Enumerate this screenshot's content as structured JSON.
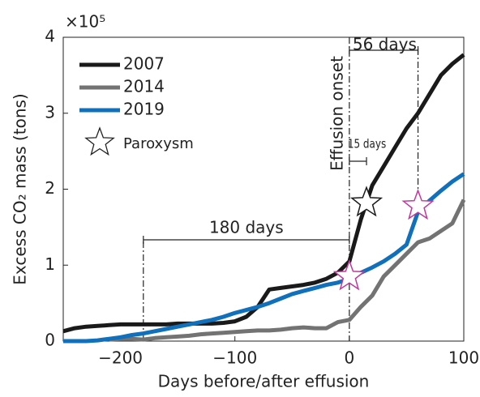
{
  "chart_data": {
    "type": "line",
    "xlabel": "Days before/after effusion",
    "ylabel": "Excess CO₂ mass (tons)",
    "y_multiplier": "×10⁵",
    "xlim": [
      -250,
      100
    ],
    "ylim": [
      0,
      4
    ],
    "xticks": [
      {
        "value": -200,
        "label": "−200"
      },
      {
        "value": -100,
        "label": "−100"
      },
      0,
      100
    ],
    "yticks": [
      0,
      1,
      2,
      3,
      4
    ],
    "legend": "upper left",
    "x": [
      -250,
      -240,
      -230,
      -220,
      -210,
      -200,
      -190,
      -180,
      -170,
      -160,
      -150,
      -140,
      -130,
      -120,
      -110,
      -100,
      -90,
      -80,
      -70,
      -60,
      -50,
      -40,
      -30,
      -20,
      -10,
      0,
      10,
      20,
      30,
      40,
      50,
      60,
      70,
      80,
      90,
      100
    ],
    "series": [
      {
        "name": "2007",
        "color": "#1a1a1a",
        "values": [
          0.13,
          0.17,
          0.19,
          0.2,
          0.21,
          0.22,
          0.22,
          0.22,
          0.22,
          0.22,
          0.23,
          0.23,
          0.23,
          0.23,
          0.24,
          0.26,
          0.32,
          0.45,
          0.68,
          0.7,
          0.72,
          0.74,
          0.77,
          0.82,
          0.9,
          1.05,
          1.6,
          2.05,
          2.3,
          2.55,
          2.8,
          3.0,
          3.25,
          3.5,
          3.65,
          3.77
        ]
      },
      {
        "name": "2014",
        "color": "#737373",
        "values": [
          null,
          null,
          null,
          null,
          0.02,
          0.03,
          0.03,
          0.02,
          0.04,
          0.05,
          0.06,
          0.07,
          0.09,
          0.1,
          0.11,
          0.12,
          0.13,
          0.14,
          0.14,
          0.15,
          0.17,
          0.18,
          0.17,
          0.17,
          0.25,
          0.28,
          0.45,
          0.6,
          0.85,
          1.0,
          1.15,
          1.3,
          1.35,
          1.45,
          1.55,
          1.86
        ]
      },
      {
        "name": "2019",
        "color": "#1070bb",
        "values": [
          0,
          0,
          0,
          0.01,
          0.03,
          0.05,
          0.08,
          0.1,
          0.13,
          0.16,
          0.19,
          0.22,
          0.25,
          0.28,
          0.32,
          0.37,
          0.41,
          0.45,
          0.5,
          0.56,
          0.62,
          0.66,
          0.7,
          0.74,
          0.77,
          0.82,
          0.9,
          0.97,
          1.05,
          1.15,
          1.27,
          1.7,
          1.85,
          1.98,
          2.1,
          2.2
        ]
      }
    ],
    "paroxysm": {
      "name": "Paroxysm",
      "x": [
        0,
        15,
        60
      ],
      "values": [
        0.85,
        1.82,
        1.78
      ],
      "colors": [
        "#c2379b",
        "#1a1a1a",
        "#c2379b"
      ]
    },
    "annotations": [
      "Effusion onset",
      "56 days",
      "15 days",
      "180 days"
    ]
  }
}
